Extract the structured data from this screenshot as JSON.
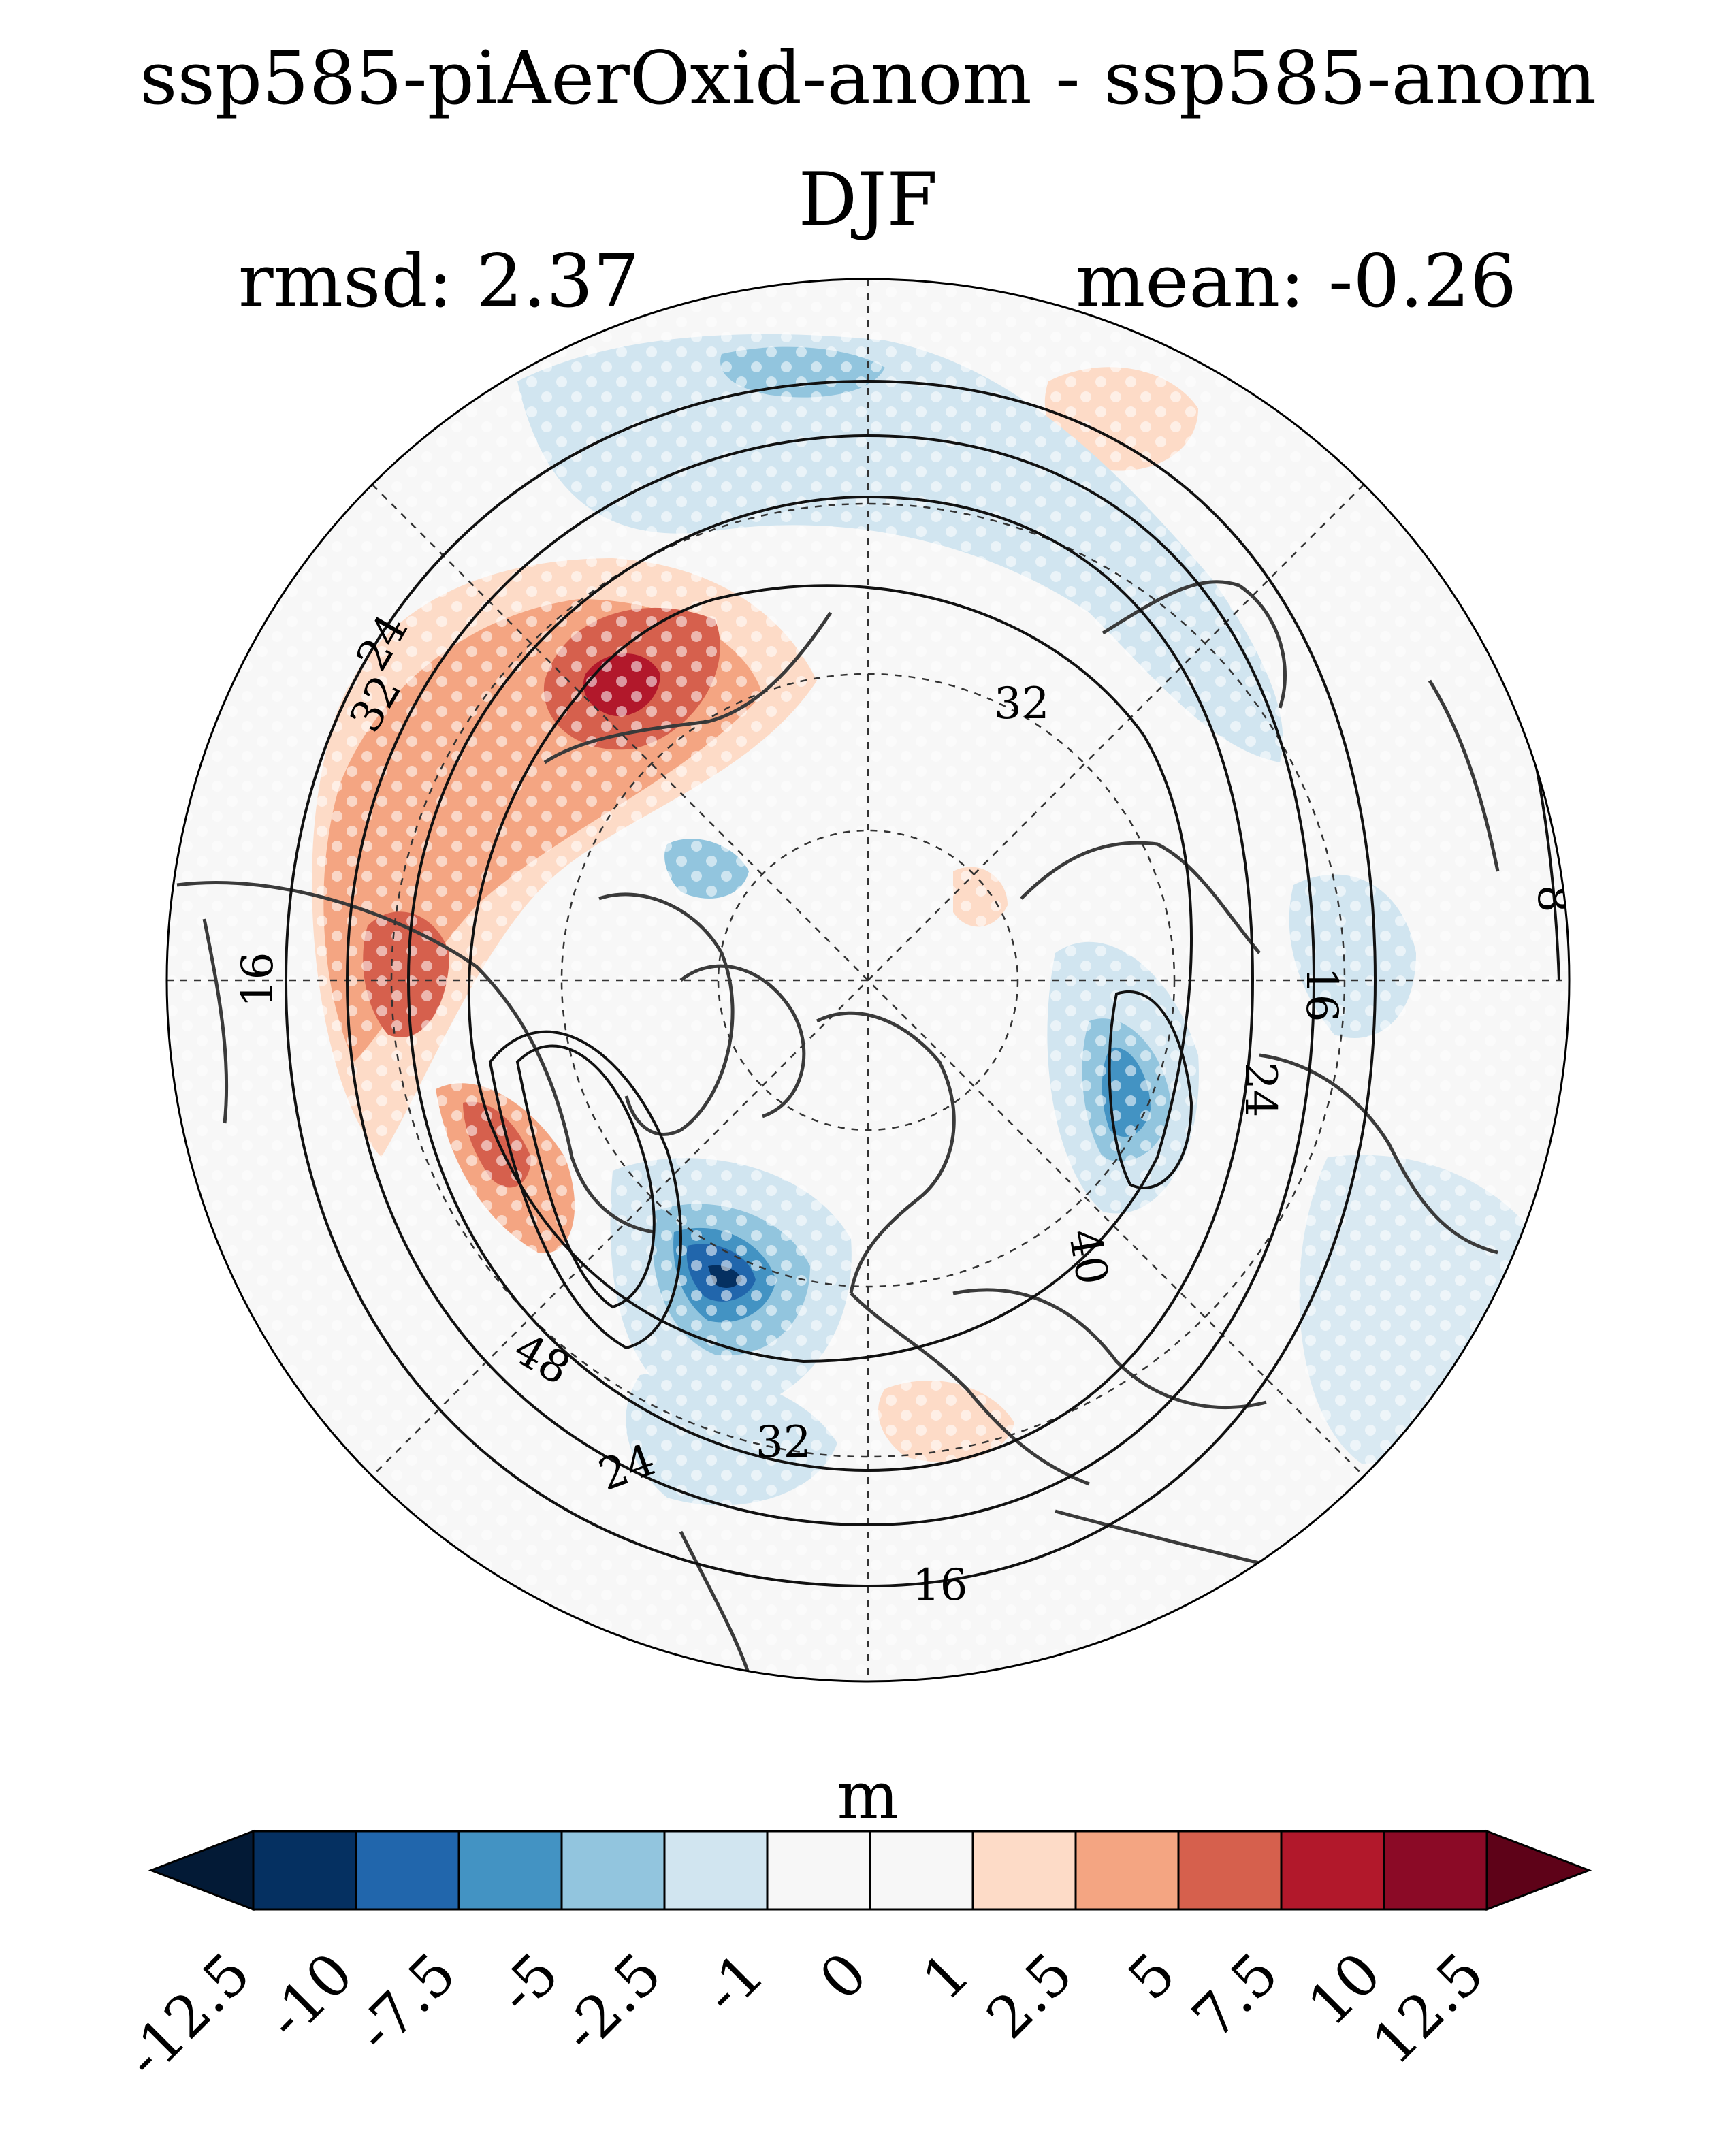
{
  "title": {
    "line1": "ssp585-piAerOxid-anom - ssp585-anom",
    "line2": "DJF"
  },
  "stats": {
    "rmsd": "rmsd: 2.37",
    "mean": "mean: -0.26"
  },
  "map": {
    "projection": "north-polar-stereographic",
    "variable_units": "m",
    "stippling": "white dots mark significant areas",
    "contour_labels": [
      "24",
      "32",
      "32",
      "16",
      "16",
      "8",
      "24",
      "40",
      "48",
      "32",
      "24",
      "16"
    ]
  },
  "colorbar": {
    "units": "m",
    "tick_labels": [
      "-12.5",
      "-10",
      "-7.5",
      "-5",
      "-2.5",
      "-1",
      "0",
      "1",
      "2.5",
      "5",
      "7.5",
      "10",
      "12.5"
    ],
    "colors": [
      "#053061",
      "#2166ac",
      "#4393c3",
      "#92c5de",
      "#d1e5f0",
      "#f7f7f7",
      "#f7f7f7",
      "#fddbc7",
      "#f4a582",
      "#d6604d",
      "#b2182b",
      "#8b0a26"
    ],
    "under_color": "#031a36",
    "over_color": "#5e0218"
  }
}
